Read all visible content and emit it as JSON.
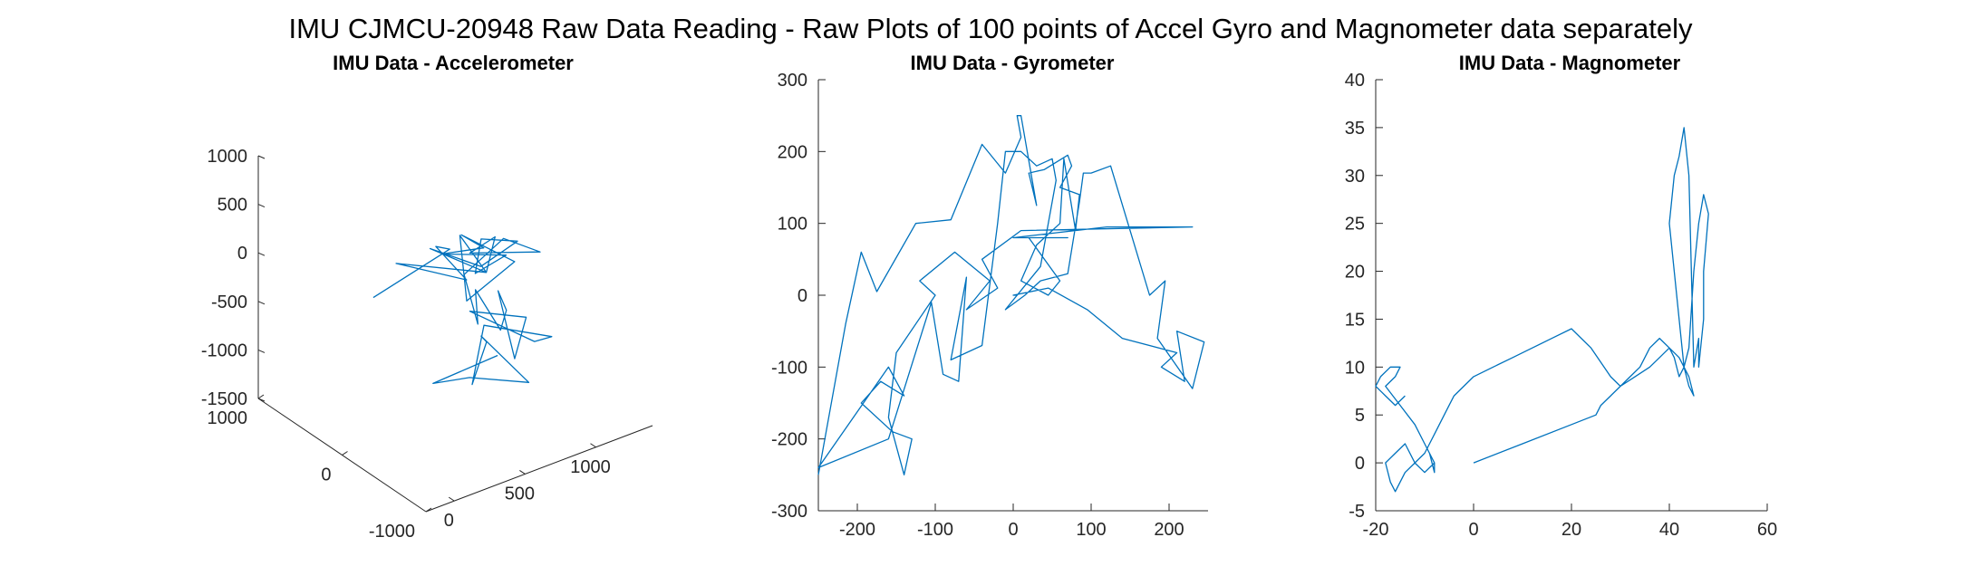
{
  "figure_title": "IMU CJMCU-20948 Raw Data Reading - Raw Plots of 100 points of Accel Gyro and Magnometer data separately",
  "line_color": "#0072BD",
  "chart_data": [
    {
      "type": "line",
      "subtype": "3d",
      "title": "IMU Data - Accelerometer",
      "xlabel": "",
      "ylabel": "",
      "zlabel": "",
      "xlim": [
        -200,
        1400
      ],
      "ylim": [
        -1000,
        1000
      ],
      "zlim": [
        -1500,
        1000
      ],
      "xticks": [
        0,
        500,
        1000
      ],
      "yticks": [
        -1000,
        0,
        1000
      ],
      "zticks": [
        -1500,
        -1000,
        -500,
        0,
        500,
        1000
      ],
      "x_tick_labels": [
        "0",
        "500",
        "1000"
      ],
      "y_tick_labels": [
        "-1000",
        "0",
        "1000"
      ],
      "z_tick_labels": [
        "-1500",
        "-1000",
        "-500",
        "0",
        "500",
        "1000"
      ],
      "grid": false,
      "series": [
        {
          "x": [
            20,
            560,
            580,
            560,
            300,
            700,
            750,
            680,
            900,
            760,
            800,
            620,
            840,
            740,
            900,
            920,
            780,
            540,
            700,
            880,
            820,
            1080,
            940,
            780,
            640,
            860,
            800,
            960,
            1020,
            900,
            1100,
            820,
            1040,
            1280,
            920,
            600,
            820,
            900,
            1000,
            700,
            560,
            780
          ],
          "y": [
            0,
            0,
            200,
            -200,
            200,
            -200,
            200,
            0,
            -200,
            200,
            0,
            200,
            -200,
            0,
            200,
            -200,
            0,
            200,
            -200,
            0,
            200,
            -200,
            0,
            200,
            -200,
            200,
            -200,
            0,
            200,
            -200,
            0,
            200,
            -200,
            0,
            200,
            -200,
            0,
            200,
            -200,
            0,
            200,
            -200
          ],
          "z": [
            0,
            200,
            100,
            0,
            80,
            0,
            120,
            -400,
            0,
            120,
            80,
            0,
            100,
            -150,
            0,
            200,
            -100,
            100,
            0,
            150,
            -100,
            0,
            100,
            -300,
            -500,
            -500,
            -650,
            -650,
            -600,
            -1000,
            -800,
            -700,
            -900,
            -1100,
            -900,
            -1100,
            -900,
            -1000,
            -1300,
            -1200,
            -1300,
            -900
          ]
        }
      ]
    },
    {
      "type": "line",
      "title": "IMU Data - Gyrometer",
      "xlabel": "",
      "ylabel": "",
      "xlim": [
        -250,
        250
      ],
      "ylim": [
        -300,
        300
      ],
      "xticks": [
        -200,
        -100,
        0,
        100,
        200
      ],
      "yticks": [
        -300,
        -200,
        -100,
        0,
        100,
        200,
        300
      ],
      "x_tick_labels": [
        "-200",
        "-100",
        "0",
        "100",
        "200"
      ],
      "y_tick_labels": [
        "-300",
        "-200",
        "-100",
        "0",
        "100",
        "200",
        "300"
      ],
      "grid": false,
      "series": [
        {
          "x": [
            -250,
            -215,
            -195,
            -175,
            -125,
            -80,
            -40,
            -10,
            10,
            5,
            10,
            30,
            20,
            40,
            70,
            75,
            60,
            85,
            80,
            65,
            60,
            30,
            10,
            45,
            60,
            20,
            70,
            0,
            120,
            180,
            230,
            10,
            -40,
            -20,
            -60,
            -30,
            -75,
            -120,
            -100,
            -150,
            -160,
            -140,
            -130,
            -155,
            -195,
            -170,
            -140,
            -160,
            -250,
            -160,
            -105,
            -90,
            -70,
            -60,
            -80,
            -40,
            -20,
            -10,
            10,
            30,
            50,
            55,
            35,
            -10,
            15,
            35,
            70,
            85,
            90,
            100,
            125,
            175,
            195,
            185,
            230,
            245,
            210,
            220,
            190,
            210,
            140,
            95,
            45,
            0,
            5
          ],
          "y": [
            -250,
            -40,
            60,
            5,
            100,
            105,
            210,
            170,
            220,
            250,
            250,
            125,
            170,
            175,
            195,
            180,
            150,
            140,
            90,
            190,
            100,
            70,
            20,
            0,
            20,
            80,
            80,
            80,
            95,
            95,
            95,
            90,
            50,
            10,
            -20,
            20,
            60,
            20,
            0,
            -80,
            -170,
            -250,
            -200,
            -190,
            -150,
            -120,
            -140,
            -100,
            -240,
            -200,
            -10,
            -110,
            -120,
            25,
            -90,
            -70,
            100,
            200,
            200,
            180,
            190,
            160,
            40,
            -20,
            0,
            20,
            30,
            130,
            170,
            170,
            180,
            0,
            20,
            -60,
            -130,
            -65,
            -50,
            -120,
            -100,
            -80,
            -60,
            -20,
            10,
            0,
            0
          ]
        }
      ]
    },
    {
      "type": "line",
      "title": "IMU Data - Magnometer",
      "xlabel": "",
      "ylabel": "",
      "xlim": [
        -20,
        60
      ],
      "ylim": [
        -5,
        40
      ],
      "xticks": [
        -20,
        0,
        20,
        40,
        60
      ],
      "yticks": [
        -5,
        0,
        5,
        10,
        15,
        20,
        25,
        30,
        35,
        40
      ],
      "x_tick_labels": [
        "-20",
        "0",
        "20",
        "40",
        "60"
      ],
      "y_tick_labels": [
        "-5",
        "0",
        "5",
        "10",
        "15",
        "20",
        "25",
        "30",
        "35",
        "40"
      ],
      "grid": false,
      "series": [
        {
          "x": [
            0,
            10,
            20,
            25,
            26,
            28,
            30,
            33,
            36,
            38,
            40,
            41,
            42,
            43,
            44,
            45,
            46,
            47,
            48,
            47,
            47,
            46,
            46,
            45,
            44,
            43,
            42,
            41,
            40,
            41,
            42,
            43,
            44,
            45,
            44,
            42,
            40,
            38,
            36,
            34,
            32,
            30,
            28,
            24,
            20,
            16,
            12,
            8,
            4,
            0,
            -2,
            -4,
            -5,
            -6,
            -7,
            -8,
            -9,
            -10,
            -12,
            -14,
            -16,
            -17,
            -18,
            -16,
            -14,
            -12,
            -10,
            -8,
            -9,
            -8,
            -8,
            -10,
            -12,
            -15,
            -18,
            -16,
            -15,
            -17,
            -19,
            -20,
            -18,
            -16,
            -14
          ],
          "y": [
            0,
            2,
            4,
            5,
            6,
            7,
            8,
            9,
            10,
            11,
            12,
            11,
            9,
            10,
            12,
            20,
            25,
            28,
            26,
            20,
            15,
            10,
            13,
            10,
            30,
            35,
            32,
            30,
            25,
            20,
            15,
            10,
            8,
            7,
            9,
            11,
            12,
            13,
            12,
            10,
            9,
            8,
            9,
            12,
            14,
            13,
            12,
            11,
            10,
            9,
            8,
            7,
            6,
            5,
            4,
            3,
            2,
            1,
            0,
            -1,
            -3,
            -2,
            0,
            1,
            2,
            0,
            -1,
            0,
            1,
            -1,
            0,
            2,
            4,
            6,
            8,
            9,
            10,
            10,
            9,
            8,
            7,
            6,
            7
          ]
        }
      ]
    }
  ]
}
